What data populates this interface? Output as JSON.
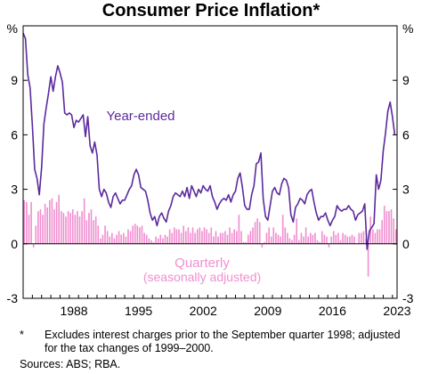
{
  "title": "Consumer Price Inflation*",
  "footnote": {
    "marker": "*",
    "text": "Excludes interest charges prior to the September quarter 1998; adjusted for the tax changes of 1999–2000."
  },
  "sources": "Sources: ABS; RBA.",
  "colors": {
    "year_ended": "#5b2a9e",
    "quarterly": "#f08fd0",
    "axis": "#000000",
    "grid": "#d0d0d0"
  },
  "chart_data": {
    "type": "bar+line",
    "y_unit": "%",
    "ylim": [
      -3,
      12
    ],
    "yticks": [
      -3,
      0,
      3,
      6,
      9
    ],
    "xlim": [
      1983.0,
      2023.5
    ],
    "xticks": [
      1988,
      1995,
      2002,
      2009,
      2016,
      2023
    ],
    "grid": false,
    "series": [
      {
        "name": "Year-ended",
        "type": "line",
        "points": [
          [
            1983.0,
            11.6
          ],
          [
            1983.25,
            11.3
          ],
          [
            1983.5,
            9.3
          ],
          [
            1983.75,
            8.6
          ],
          [
            1984.0,
            6.5
          ],
          [
            1984.25,
            4.1
          ],
          [
            1984.5,
            3.6
          ],
          [
            1984.75,
            2.7
          ],
          [
            1985.0,
            4.2
          ],
          [
            1985.25,
            6.6
          ],
          [
            1985.5,
            7.5
          ],
          [
            1985.75,
            8.3
          ],
          [
            1986.0,
            9.2
          ],
          [
            1986.25,
            8.4
          ],
          [
            1986.5,
            9.2
          ],
          [
            1986.75,
            9.8
          ],
          [
            1987.0,
            9.4
          ],
          [
            1987.25,
            8.9
          ],
          [
            1987.5,
            7.2
          ],
          [
            1987.75,
            7.1
          ],
          [
            1988.0,
            7.2
          ],
          [
            1988.25,
            7.1
          ],
          [
            1988.5,
            6.4
          ],
          [
            1988.75,
            6.8
          ],
          [
            1989.0,
            6.7
          ],
          [
            1989.25,
            6.9
          ],
          [
            1989.5,
            7.1
          ],
          [
            1989.75,
            5.9
          ],
          [
            1990.0,
            7.0
          ],
          [
            1990.25,
            5.4
          ],
          [
            1990.5,
            5.0
          ],
          [
            1990.75,
            5.6
          ],
          [
            1991.0,
            4.9
          ],
          [
            1991.25,
            3.0
          ],
          [
            1991.5,
            2.6
          ],
          [
            1991.75,
            3.0
          ],
          [
            1992.0,
            2.8
          ],
          [
            1992.25,
            2.3
          ],
          [
            1992.5,
            2.0
          ],
          [
            1992.75,
            2.6
          ],
          [
            1993.0,
            2.8
          ],
          [
            1993.25,
            2.5
          ],
          [
            1993.5,
            2.2
          ],
          [
            1993.75,
            2.4
          ],
          [
            1994.0,
            2.4
          ],
          [
            1994.25,
            2.7
          ],
          [
            1994.5,
            3.0
          ],
          [
            1994.75,
            3.2
          ],
          [
            1995.0,
            3.8
          ],
          [
            1995.25,
            4.1
          ],
          [
            1995.5,
            3.8
          ],
          [
            1995.75,
            3.1
          ],
          [
            1996.0,
            3.0
          ],
          [
            1996.25,
            2.9
          ],
          [
            1996.5,
            2.4
          ],
          [
            1996.75,
            1.7
          ],
          [
            1997.0,
            1.3
          ],
          [
            1997.25,
            1.5
          ],
          [
            1997.5,
            1.0
          ],
          [
            1997.75,
            1.5
          ],
          [
            1998.0,
            1.7
          ],
          [
            1998.25,
            1.4
          ],
          [
            1998.5,
            1.2
          ],
          [
            1998.75,
            1.8
          ],
          [
            1999.0,
            2.1
          ],
          [
            1999.25,
            2.6
          ],
          [
            1999.5,
            2.8
          ],
          [
            1999.75,
            2.7
          ],
          [
            2000.0,
            2.6
          ],
          [
            2000.25,
            2.9
          ],
          [
            2000.5,
            2.6
          ],
          [
            2000.75,
            3.1
          ],
          [
            2001.0,
            2.5
          ],
          [
            2001.25,
            3.2
          ],
          [
            2001.5,
            2.9
          ],
          [
            2001.75,
            2.6
          ],
          [
            2002.0,
            3.0
          ],
          [
            2002.25,
            2.8
          ],
          [
            2002.5,
            3.2
          ],
          [
            2002.75,
            3.0
          ],
          [
            2003.0,
            2.9
          ],
          [
            2003.25,
            3.2
          ],
          [
            2003.5,
            2.6
          ],
          [
            2003.75,
            2.3
          ],
          [
            2004.0,
            1.9
          ],
          [
            2004.25,
            2.2
          ],
          [
            2004.5,
            2.4
          ],
          [
            2004.75,
            2.5
          ],
          [
            2005.0,
            2.4
          ],
          [
            2005.25,
            2.7
          ],
          [
            2005.5,
            2.3
          ],
          [
            2005.75,
            2.7
          ],
          [
            2006.0,
            2.9
          ],
          [
            2006.25,
            3.6
          ],
          [
            2006.5,
            3.9
          ],
          [
            2006.75,
            3.1
          ],
          [
            2007.0,
            2.1
          ],
          [
            2007.25,
            1.9
          ],
          [
            2007.5,
            1.9
          ],
          [
            2007.75,
            2.7
          ],
          [
            2008.0,
            3.2
          ],
          [
            2008.25,
            4.4
          ],
          [
            2008.5,
            4.5
          ],
          [
            2008.75,
            5.0
          ],
          [
            2009.0,
            2.5
          ],
          [
            2009.25,
            1.5
          ],
          [
            2009.5,
            1.3
          ],
          [
            2009.75,
            2.1
          ],
          [
            2010.0,
            2.9
          ],
          [
            2010.25,
            3.1
          ],
          [
            2010.5,
            2.8
          ],
          [
            2010.75,
            2.7
          ],
          [
            2011.0,
            3.3
          ],
          [
            2011.25,
            3.6
          ],
          [
            2011.5,
            3.5
          ],
          [
            2011.75,
            3.1
          ],
          [
            2012.0,
            1.6
          ],
          [
            2012.25,
            1.2
          ],
          [
            2012.5,
            2.0
          ],
          [
            2012.75,
            2.2
          ],
          [
            2013.0,
            2.5
          ],
          [
            2013.25,
            2.4
          ],
          [
            2013.5,
            2.2
          ],
          [
            2013.75,
            2.7
          ],
          [
            2014.0,
            2.9
          ],
          [
            2014.25,
            3.0
          ],
          [
            2014.5,
            2.3
          ],
          [
            2014.75,
            1.7
          ],
          [
            2015.0,
            1.3
          ],
          [
            2015.25,
            1.5
          ],
          [
            2015.5,
            1.5
          ],
          [
            2015.75,
            1.7
          ],
          [
            2016.0,
            1.3
          ],
          [
            2016.25,
            1.0
          ],
          [
            2016.5,
            1.3
          ],
          [
            2016.75,
            1.5
          ],
          [
            2017.0,
            2.1
          ],
          [
            2017.25,
            1.9
          ],
          [
            2017.5,
            1.8
          ],
          [
            2017.75,
            1.9
          ],
          [
            2018.0,
            1.9
          ],
          [
            2018.25,
            2.1
          ],
          [
            2018.5,
            1.9
          ],
          [
            2018.75,
            1.8
          ],
          [
            2019.0,
            1.3
          ],
          [
            2019.25,
            1.6
          ],
          [
            2019.5,
            1.7
          ],
          [
            2019.75,
            1.8
          ],
          [
            2020.0,
            2.2
          ],
          [
            2020.25,
            -0.3
          ],
          [
            2020.5,
            0.7
          ],
          [
            2020.75,
            0.9
          ],
          [
            2021.0,
            1.1
          ],
          [
            2021.25,
            3.8
          ],
          [
            2021.5,
            3.0
          ],
          [
            2021.75,
            3.5
          ],
          [
            2022.0,
            5.1
          ],
          [
            2022.25,
            6.1
          ],
          [
            2022.5,
            7.3
          ],
          [
            2022.75,
            7.8
          ],
          [
            2023.0,
            7.0
          ],
          [
            2023.25,
            6.0
          ]
        ]
      },
      {
        "name": "Quarterly",
        "sublabel": "(seasonally adjusted)",
        "type": "bar",
        "x_start": 1983.0,
        "x_step": 0.25,
        "values": [
          2.4,
          2.3,
          1.6,
          2.3,
          -0.2,
          1.0,
          1.8,
          1.9,
          1.6,
          2.2,
          2.0,
          2.4,
          2.5,
          1.9,
          2.3,
          2.7,
          1.8,
          1.7,
          1.5,
          1.8,
          1.7,
          1.9,
          1.6,
          1.8,
          1.5,
          1.8,
          2.5,
          1.3,
          1.7,
          1.9,
          1.3,
          1.5,
          1.0,
          0.3,
          0.5,
          1.0,
          0.7,
          0.4,
          0.6,
          0.3,
          0.5,
          0.7,
          0.5,
          0.6,
          0.4,
          0.8,
          0.7,
          1.0,
          1.1,
          1.0,
          0.9,
          1.0,
          0.6,
          0.5,
          0.3,
          0.2,
          0.1,
          0.4,
          0.3,
          0.5,
          0.3,
          0.5,
          0.4,
          0.8,
          0.6,
          0.9,
          0.8,
          0.8,
          0.6,
          1.0,
          0.7,
          0.9,
          0.6,
          0.9,
          0.6,
          0.8,
          0.9,
          0.7,
          0.9,
          0.8,
          0.6,
          0.9,
          0.4,
          0.7,
          0.4,
          0.6,
          0.6,
          0.7,
          0.5,
          0.9,
          0.6,
          0.8,
          0.7,
          1.6,
          0.7,
          0.1,
          0.1,
          0.5,
          0.7,
          0.9,
          1.2,
          1.4,
          1.2,
          -0.2,
          0.1,
          0.6,
          0.9,
          0.4,
          0.9,
          0.6,
          0.5,
          0.4,
          1.6,
          0.9,
          0.6,
          0.3,
          0.2,
          0.5,
          1.4,
          0.2,
          0.6,
          0.4,
          0.9,
          0.4,
          0.6,
          0.5,
          0.6,
          0.2,
          0.1,
          0.7,
          0.5,
          0.4,
          -0.2,
          0.4,
          0.7,
          0.5,
          0.6,
          0.2,
          0.6,
          0.5,
          0.4,
          0.4,
          0.5,
          0.4,
          0.0,
          0.6,
          0.6,
          0.7,
          0.3,
          -1.8,
          1.5,
          0.8,
          0.6,
          0.8,
          0.8,
          1.3,
          2.1,
          1.8,
          1.8,
          1.9,
          1.4,
          0.8
        ]
      }
    ]
  }
}
